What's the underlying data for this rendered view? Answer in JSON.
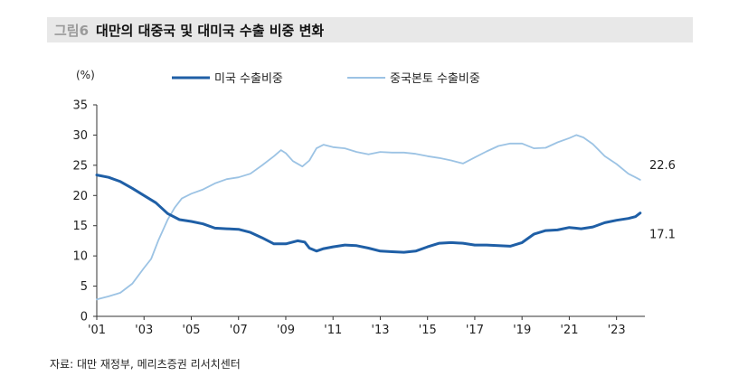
{
  "figure_number": "그림6",
  "title": "대만의 대중국 및 대미국 수출 비중 변화",
  "source": "자료: 대만 재정부, 메리츠증권 리서치센터",
  "chart_data": {
    "type": "line",
    "unit_label": "(%)",
    "ylim": [
      0,
      35
    ],
    "yticks": [
      0,
      5,
      10,
      15,
      20,
      25,
      30,
      35
    ],
    "xlim": [
      2001,
      2024.2
    ],
    "xticks": [
      {
        "value": 2001,
        "label": "'01"
      },
      {
        "value": 2003,
        "label": "'03"
      },
      {
        "value": 2005,
        "label": "'05"
      },
      {
        "value": 2007,
        "label": "'07"
      },
      {
        "value": 2009,
        "label": "'09"
      },
      {
        "value": 2011,
        "label": "'11"
      },
      {
        "value": 2013,
        "label": "'13"
      },
      {
        "value": 2015,
        "label": "'15"
      },
      {
        "value": 2017,
        "label": "'17"
      },
      {
        "value": 2019,
        "label": "'19"
      },
      {
        "value": 2021,
        "label": "'21"
      },
      {
        "value": 2023,
        "label": "'23"
      }
    ],
    "grid": false,
    "legend_position": "top",
    "series": [
      {
        "name": "미국 수출비중",
        "color": "#1f5fa6",
        "end_label": "17.1",
        "points": [
          [
            2001.0,
            23.4
          ],
          [
            2001.5,
            23.0
          ],
          [
            2002.0,
            22.3
          ],
          [
            2002.5,
            21.2
          ],
          [
            2003.0,
            20.0
          ],
          [
            2003.5,
            18.8
          ],
          [
            2004.0,
            17.0
          ],
          [
            2004.5,
            16.0
          ],
          [
            2005.0,
            15.7
          ],
          [
            2005.5,
            15.3
          ],
          [
            2006.0,
            14.6
          ],
          [
            2006.5,
            14.5
          ],
          [
            2007.0,
            14.4
          ],
          [
            2007.5,
            13.9
          ],
          [
            2008.0,
            13.0
          ],
          [
            2008.5,
            12.0
          ],
          [
            2009.0,
            12.0
          ],
          [
            2009.5,
            12.5
          ],
          [
            2009.8,
            12.3
          ],
          [
            2010.0,
            11.3
          ],
          [
            2010.3,
            10.8
          ],
          [
            2010.6,
            11.2
          ],
          [
            2011.0,
            11.5
          ],
          [
            2011.5,
            11.8
          ],
          [
            2012.0,
            11.7
          ],
          [
            2012.5,
            11.3
          ],
          [
            2013.0,
            10.8
          ],
          [
            2013.5,
            10.7
          ],
          [
            2014.0,
            10.6
          ],
          [
            2014.5,
            10.8
          ],
          [
            2015.0,
            11.5
          ],
          [
            2015.5,
            12.1
          ],
          [
            2016.0,
            12.2
          ],
          [
            2016.5,
            12.1
          ],
          [
            2017.0,
            11.8
          ],
          [
            2017.5,
            11.8
          ],
          [
            2018.0,
            11.7
          ],
          [
            2018.5,
            11.6
          ],
          [
            2019.0,
            12.2
          ],
          [
            2019.5,
            13.6
          ],
          [
            2020.0,
            14.2
          ],
          [
            2020.5,
            14.3
          ],
          [
            2021.0,
            14.7
          ],
          [
            2021.5,
            14.5
          ],
          [
            2022.0,
            14.8
          ],
          [
            2022.5,
            15.5
          ],
          [
            2023.0,
            15.9
          ],
          [
            2023.5,
            16.2
          ],
          [
            2023.8,
            16.5
          ],
          [
            2024.0,
            17.1
          ]
        ]
      },
      {
        "name": "중국본토 수출비중",
        "color": "#9cc3e4",
        "end_label": "22.6",
        "points": [
          [
            2001.0,
            2.8
          ],
          [
            2001.5,
            3.3
          ],
          [
            2002.0,
            3.9
          ],
          [
            2002.5,
            5.4
          ],
          [
            2003.0,
            8.0
          ],
          [
            2003.3,
            9.5
          ],
          [
            2003.6,
            12.5
          ],
          [
            2004.0,
            16.0
          ],
          [
            2004.3,
            18.0
          ],
          [
            2004.6,
            19.5
          ],
          [
            2005.0,
            20.3
          ],
          [
            2005.5,
            21.0
          ],
          [
            2006.0,
            22.0
          ],
          [
            2006.5,
            22.7
          ],
          [
            2007.0,
            23.0
          ],
          [
            2007.5,
            23.6
          ],
          [
            2008.0,
            25.0
          ],
          [
            2008.5,
            26.5
          ],
          [
            2008.8,
            27.5
          ],
          [
            2009.0,
            27.0
          ],
          [
            2009.3,
            25.7
          ],
          [
            2009.7,
            24.8
          ],
          [
            2010.0,
            25.8
          ],
          [
            2010.3,
            27.8
          ],
          [
            2010.6,
            28.4
          ],
          [
            2011.0,
            28.0
          ],
          [
            2011.5,
            27.8
          ],
          [
            2012.0,
            27.2
          ],
          [
            2012.5,
            26.8
          ],
          [
            2013.0,
            27.2
          ],
          [
            2013.5,
            27.1
          ],
          [
            2014.0,
            27.1
          ],
          [
            2014.5,
            26.9
          ],
          [
            2015.0,
            26.5
          ],
          [
            2015.5,
            26.2
          ],
          [
            2016.0,
            25.8
          ],
          [
            2016.5,
            25.3
          ],
          [
            2017.0,
            26.3
          ],
          [
            2017.5,
            27.3
          ],
          [
            2018.0,
            28.2
          ],
          [
            2018.5,
            28.6
          ],
          [
            2019.0,
            28.6
          ],
          [
            2019.5,
            27.8
          ],
          [
            2020.0,
            27.9
          ],
          [
            2020.5,
            28.8
          ],
          [
            2021.0,
            29.5
          ],
          [
            2021.3,
            30.0
          ],
          [
            2021.6,
            29.6
          ],
          [
            2022.0,
            28.5
          ],
          [
            2022.5,
            26.5
          ],
          [
            2023.0,
            25.2
          ],
          [
            2023.5,
            23.6
          ],
          [
            2023.8,
            23.0
          ],
          [
            2024.0,
            22.6
          ]
        ]
      }
    ]
  }
}
